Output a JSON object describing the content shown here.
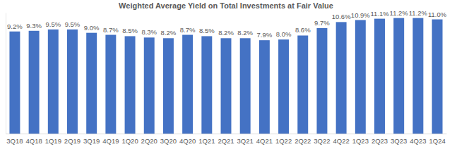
{
  "chart_data": {
    "type": "bar",
    "title": "Weighted Average Yield on Total Investments at Fair Value",
    "categories": [
      "3Q18",
      "4Q18",
      "1Q19",
      "2Q19",
      "3Q19",
      "4Q19",
      "1Q20",
      "2Q20",
      "3Q20",
      "4Q20",
      "1Q21",
      "2Q21",
      "3Q21",
      "4Q21",
      "1Q22",
      "2Q22",
      "3Q22",
      "4Q22",
      "1Q23",
      "2Q23",
      "3Q23",
      "4Q23",
      "1Q24"
    ],
    "values": [
      9.2,
      9.3,
      9.5,
      9.5,
      9.0,
      8.7,
      8.5,
      8.3,
      8.2,
      8.7,
      8.5,
      8.2,
      8.2,
      7.9,
      8.0,
      8.6,
      9.7,
      10.6,
      10.9,
      11.1,
      11.2,
      11.2,
      11.0
    ],
    "value_labels": [
      "9.2%",
      "9.3%",
      "9.5%",
      "9.5%",
      "9.0%",
      "8.7%",
      "8.5%",
      "8.3%",
      "8.2%",
      "8.7%",
      "8.5%",
      "8.2%",
      "8.2%",
      "7.9%",
      "8.0%",
      "8.6%",
      "9.7%",
      "10.6%",
      "10.9%",
      "11.1%",
      "11.2%",
      "11.2%",
      "11.0%"
    ],
    "color": "#4472c4",
    "ylim": [
      -6,
      12
    ],
    "yticks": [],
    "grid": false,
    "data_labels": true,
    "tick_labels": "x"
  }
}
